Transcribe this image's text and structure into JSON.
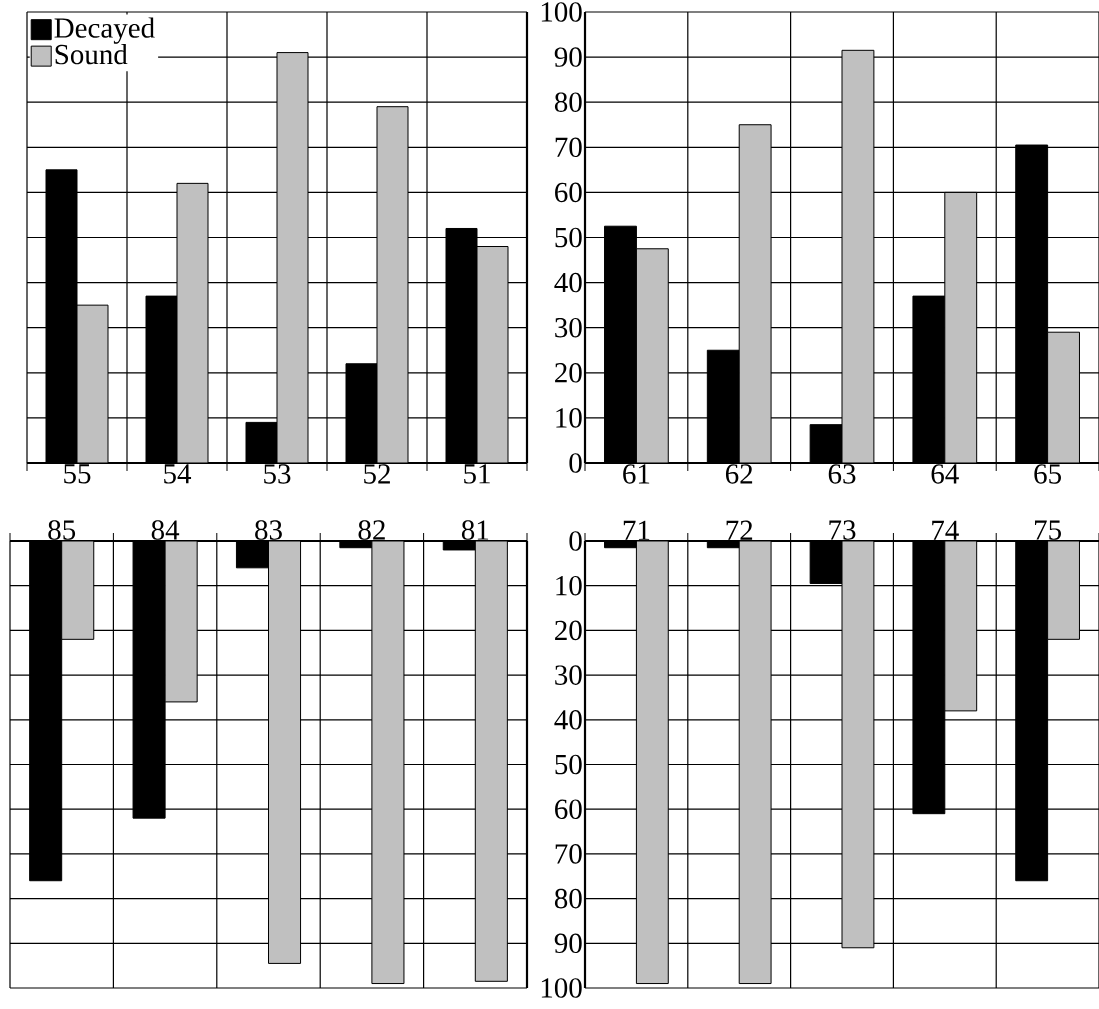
{
  "chart_data": [
    {
      "type": "bar",
      "categories": [
        "55",
        "54",
        "53",
        "52",
        "51"
      ],
      "series": [
        {
          "name": "Decayed",
          "color": "#000000",
          "values": [
            65,
            37,
            9,
            22,
            52
          ]
        },
        {
          "name": "Sound",
          "color": "#c0c0c0",
          "values": [
            35,
            62,
            91,
            79,
            48
          ]
        }
      ],
      "ylim": [
        0,
        100
      ],
      "yticks": [
        0,
        10,
        20,
        30,
        40,
        50,
        60,
        70,
        80,
        90,
        100
      ],
      "grid": true,
      "legend": "top left",
      "tick_labels": "x"
    },
    {
      "type": "bar",
      "categories": [
        "61",
        "62",
        "63",
        "64",
        "65"
      ],
      "series": [
        {
          "color": "#000000",
          "values": [
            52.5,
            25,
            8.5,
            37,
            70.5
          ]
        },
        {
          "color": "#c0c0c0",
          "values": [
            47.5,
            75,
            91.5,
            60,
            29
          ]
        }
      ],
      "ylim": [
        0,
        100
      ],
      "yticks": [
        0,
        10,
        20,
        30,
        40,
        50,
        60,
        70,
        80,
        90,
        100
      ],
      "grid": true
    },
    {
      "type": "bar",
      "categories": [
        "85",
        "84",
        "83",
        "82",
        "81"
      ],
      "series": [
        {
          "color": "#000000",
          "values": [
            76,
            62,
            6,
            1.5,
            2
          ]
        },
        {
          "color": "#c0c0c0",
          "values": [
            22,
            36,
            94.5,
            99,
            98.5
          ]
        }
      ],
      "ylim": [
        100,
        0
      ],
      "yticks": [
        0,
        10,
        20,
        30,
        40,
        50,
        60,
        70,
        80,
        90,
        100
      ],
      "grid": true,
      "tick_labels": "x"
    },
    {
      "type": "bar",
      "categories": [
        "71",
        "72",
        "73",
        "74",
        "75"
      ],
      "series": [
        {
          "color": "#000000",
          "values": [
            1.5,
            1.5,
            9.5,
            61,
            76
          ]
        },
        {
          "color": "#c0c0c0",
          "values": [
            99,
            99,
            91,
            38,
            22
          ]
        }
      ],
      "ylim": [
        100,
        0
      ],
      "yticks": [
        0,
        10,
        20,
        30,
        40,
        50,
        60,
        70,
        80,
        90,
        100
      ],
      "grid": true
    }
  ]
}
